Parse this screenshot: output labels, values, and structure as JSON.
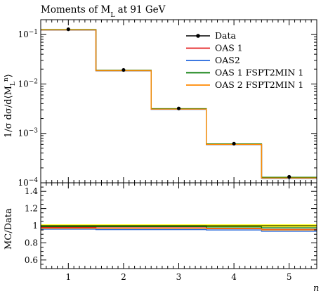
{
  "chart_data": {
    "type": "line",
    "title": "Moments of M",
    "title_subscript": "L",
    "title_suffix": "at 91 GeV",
    "xlabel": "n",
    "ylabel": "1/σ dσ/d⟨M",
    "ylabel_sub": "L",
    "ylabel_sup": "n",
    "ylabel_end": "⟩",
    "xlim": [
      0.5,
      5.5
    ],
    "ylim": [
      0.0001,
      0.2
    ],
    "yscale": "log",
    "x_ticks": [
      1,
      2,
      3,
      4,
      5
    ],
    "x_tick_labels": [
      "1",
      "2",
      "3",
      "4",
      "5"
    ],
    "y_ticks": [
      0.1,
      0.01,
      0.001,
      0.0001
    ],
    "y_tick_base": "10",
    "y_tick_exponents": [
      "−1",
      "−2",
      "−3",
      "−4"
    ],
    "legend_position": "top-right",
    "data": {
      "name": "Data",
      "x": [
        1,
        2,
        3,
        4,
        5
      ],
      "y": [
        0.128,
        0.0192,
        0.0032,
        0.00062,
        0.000132
      ],
      "color": "#000000"
    },
    "series": [
      {
        "name": "OAS 1",
        "color": "#e41a1c",
        "x": [
          1,
          2,
          3,
          4,
          5
        ],
        "y": [
          0.125,
          0.0187,
          0.00312,
          0.000602,
          0.000126
        ]
      },
      {
        "name": "OAS2",
        "color": "#2266dd",
        "x": [
          1,
          2,
          3,
          4,
          5
        ],
        "y": [
          0.123,
          0.0184,
          0.00306,
          0.000592,
          0.000123
        ]
      },
      {
        "name": "OAS 1 FSPT2MIN 1",
        "color": "#007700",
        "x": [
          1,
          2,
          3,
          4,
          5
        ],
        "y": [
          0.126,
          0.0189,
          0.00316,
          0.000612,
          0.000129
        ]
      },
      {
        "name": "OAS 2 FSPT2MIN 1",
        "color": "#ff8800",
        "x": [
          1,
          2,
          3,
          4,
          5
        ],
        "y": [
          0.124,
          0.0186,
          0.0031,
          0.000598,
          0.000125
        ]
      }
    ],
    "ratio": {
      "ylabel": "MC/Data",
      "ylim": [
        0.5,
        1.5
      ],
      "y_ticks": [
        0.6,
        0.8,
        1.0,
        1.2,
        1.4
      ],
      "y_tick_labels": [
        "0.6",
        "0.8",
        "1",
        "1.2",
        "1.4"
      ],
      "band_color": "#ffff00",
      "band": [
        0.985,
        1.015
      ],
      "series": [
        {
          "name": "OAS 1",
          "values": [
            0.98,
            0.975,
            0.975,
            0.97,
            0.955
          ]
        },
        {
          "name": "OAS2",
          "values": [
            0.96,
            0.955,
            0.955,
            0.95,
            0.935
          ]
        },
        {
          "name": "OAS 1 FSPT2MIN 1",
          "values": [
            0.99,
            0.99,
            0.99,
            0.985,
            0.975
          ]
        },
        {
          "name": "OAS 2 FSPT2MIN 1",
          "values": [
            0.97,
            0.97,
            0.97,
            0.965,
            0.95
          ]
        }
      ]
    }
  }
}
